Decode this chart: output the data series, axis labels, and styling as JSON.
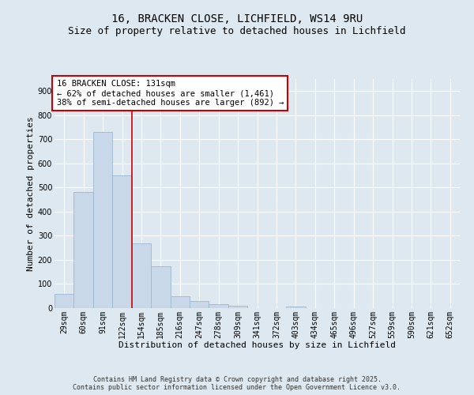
{
  "title_line1": "16, BRACKEN CLOSE, LICHFIELD, WS14 9RU",
  "title_line2": "Size of property relative to detached houses in Lichfield",
  "xlabel": "Distribution of detached houses by size in Lichfield",
  "ylabel": "Number of detached properties",
  "bins": [
    "29sqm",
    "60sqm",
    "91sqm",
    "122sqm",
    "154sqm",
    "185sqm",
    "216sqm",
    "247sqm",
    "278sqm",
    "309sqm",
    "341sqm",
    "372sqm",
    "403sqm",
    "434sqm",
    "465sqm",
    "496sqm",
    "527sqm",
    "559sqm",
    "590sqm",
    "621sqm",
    "652sqm"
  ],
  "values": [
    60,
    480,
    730,
    550,
    270,
    175,
    50,
    30,
    15,
    10,
    0,
    0,
    8,
    0,
    0,
    0,
    0,
    0,
    0,
    0,
    0
  ],
  "bar_color": "#c8d8e8",
  "bar_edge_color": "#9ab8d0",
  "vline_color": "#cc0000",
  "vline_x": 3.5,
  "annotation_box_text": "16 BRACKEN CLOSE: 131sqm\n← 62% of detached houses are smaller (1,461)\n38% of semi-detached houses are larger (892) →",
  "annotation_box_color": "#cc0000",
  "bg_color": "#dde8f0",
  "plot_bg_color": "#dde8f0",
  "footer_line1": "Contains HM Land Registry data © Crown copyright and database right 2025.",
  "footer_line2": "Contains public sector information licensed under the Open Government Licence v3.0.",
  "ylim": [
    0,
    950
  ],
  "yticks": [
    0,
    100,
    200,
    300,
    400,
    500,
    600,
    700,
    800,
    900
  ],
  "grid_color": "#ffffff",
  "title_fontsize": 10,
  "subtitle_fontsize": 9,
  "tick_fontsize": 7,
  "label_fontsize": 8,
  "annot_fontsize": 7.5,
  "footer_fontsize": 6
}
